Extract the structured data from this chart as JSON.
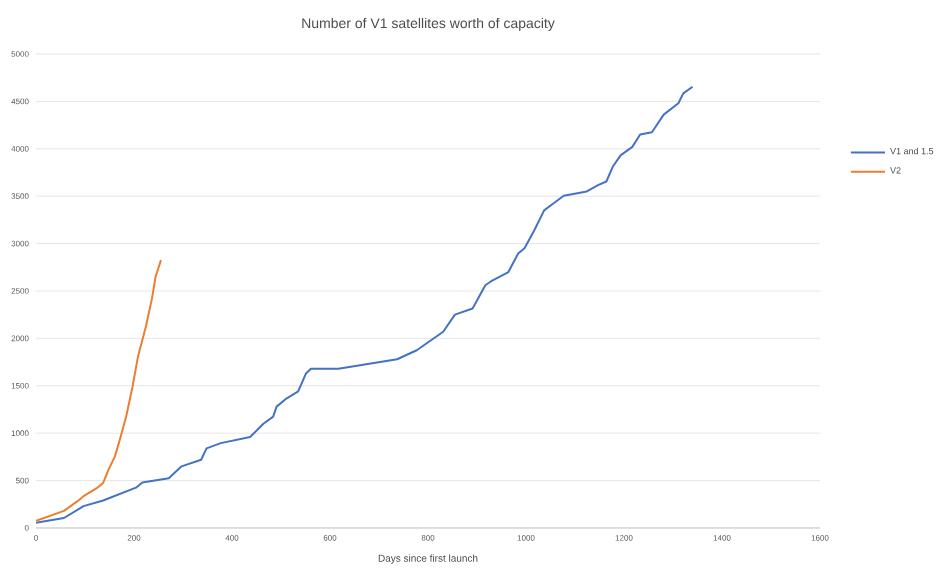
{
  "chart_data": {
    "type": "line",
    "title": "Number of V1 satellites worth of capacity",
    "xlabel": "Days since first launch",
    "xlim": [
      0,
      1600
    ],
    "xticks": [
      0,
      200,
      400,
      600,
      800,
      1000,
      1200,
      1400,
      1600
    ],
    "ylim": [
      0,
      5000
    ],
    "yticks": [
      0,
      500,
      1000,
      1500,
      2000,
      2500,
      3000,
      3500,
      4000,
      4500,
      5000
    ],
    "grid": "y",
    "legend": "right",
    "marker": "none",
    "line_style": "solid",
    "series": [
      {
        "name": "V1 and 1.5",
        "color": "#4472c4",
        "x": [
          0,
          57,
          97,
          137,
          204,
          217,
          271,
          297,
          337,
          348,
          377,
          437,
          464,
          484,
          491,
          511,
          535,
          551,
          561,
          617,
          737,
          777,
          831,
          855,
          891,
          917,
          931,
          964,
          984,
          997,
          1017,
          1037,
          1055,
          1077,
          1124,
          1148,
          1164,
          1177,
          1193,
          1217,
          1233,
          1257,
          1281,
          1311,
          1321,
          1340
        ],
        "values": [
          55,
          105,
          230,
          290,
          425,
          480,
          525,
          650,
          720,
          840,
          895,
          960,
          1100,
          1175,
          1280,
          1365,
          1440,
          1630,
          1680,
          1680,
          1780,
          1875,
          2070,
          2250,
          2315,
          2560,
          2610,
          2700,
          2895,
          2950,
          3140,
          3350,
          3420,
          3505,
          3550,
          3620,
          3655,
          3810,
          3930,
          4020,
          4150,
          4175,
          4360,
          4480,
          4585,
          4655
        ]
      },
      {
        "name": "V2",
        "color": "#ed7d31",
        "x": [
          0,
          57,
          84,
          97,
          124,
          137,
          148,
          161,
          171,
          184,
          197,
          208,
          224,
          237,
          244,
          255
        ],
        "values": [
          75,
          180,
          280,
          335,
          420,
          475,
          615,
          755,
          930,
          1175,
          1490,
          1805,
          2120,
          2430,
          2650,
          2825
        ]
      }
    ]
  }
}
